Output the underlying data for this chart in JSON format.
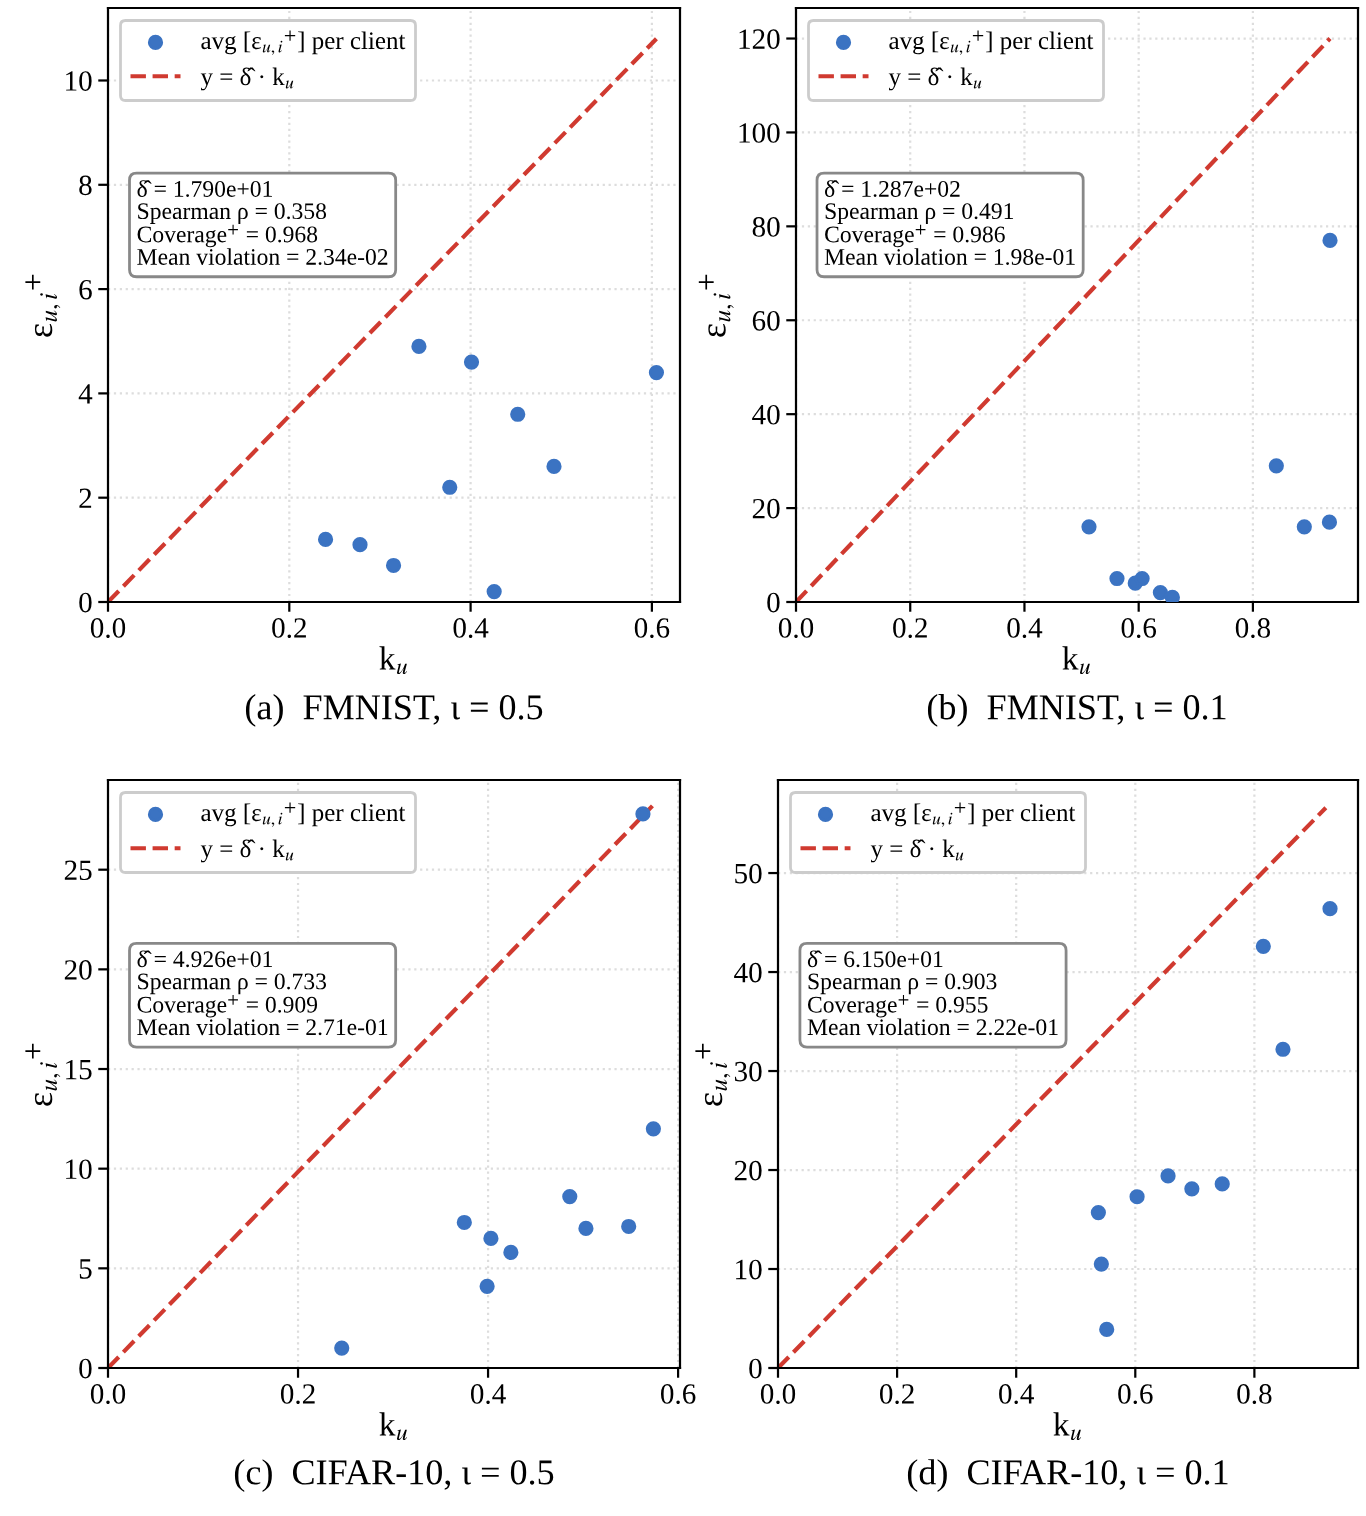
{
  "chart_data": [
    {
      "type": "scatter",
      "title": "(a)  FMNIST, ι = 0.5",
      "xlabel": "k$_{u}$",
      "ylabel": "ε$_{u,i}$$^{+}$",
      "xlim": [
        0,
        0.631
      ],
      "ylim": [
        0,
        11.39
      ],
      "xticks": [
        {
          "value": 0,
          "label": "0.0"
        },
        {
          "value": 0.2,
          "label": "0.2"
        },
        {
          "value": 0.4,
          "label": "0.4"
        },
        {
          "value": 0.6,
          "label": "0.6"
        }
      ],
      "yticks": [
        0,
        2,
        4,
        6,
        8,
        10
      ],
      "grid": true,
      "legend": "top left",
      "series": [
        {
          "name": "avg [ε$_{u,i}$$^{+}$] per client",
          "marker": "circle",
          "color": "#3b73c2",
          "x": [
            0.24,
            0.278,
            0.315,
            0.343,
            0.377,
            0.401,
            0.426,
            0.452,
            0.492,
            0.605
          ],
          "values": [
            1.2,
            1.1,
            0.7,
            4.9,
            2.2,
            4.6,
            0.2,
            3.6,
            2.6,
            4.4
          ]
        },
        {
          "name": "y = δ̂ · k$_{u}$",
          "type": "line",
          "line_style": "dashed",
          "color": "#d03a30",
          "x": [
            0,
            0.605
          ],
          "values": [
            0,
            10.8
          ]
        }
      ],
      "annotations": [
        "δ̂ = 1.790e+01\nSpearman ρ = 0.358\nCoverage$^{+}$ = 0.968\nMean violation = 2.34e-02"
      ]
    },
    {
      "type": "scatter",
      "title": "(b)  FMNIST, ι = 0.1",
      "xlabel": "k$_{u}$",
      "ylabel": "ε$_{u,i}$$^{+}$",
      "xlim": [
        0,
        0.984
      ],
      "ylim": [
        0,
        126.5
      ],
      "xticks": [
        {
          "value": 0,
          "label": "0.0"
        },
        {
          "value": 0.2,
          "label": "0.2"
        },
        {
          "value": 0.4,
          "label": "0.4"
        },
        {
          "value": 0.6,
          "label": "0.6"
        },
        {
          "value": 0.8,
          "label": "0.8"
        }
      ],
      "yticks": [
        0,
        20,
        40,
        60,
        80,
        100,
        120
      ],
      "grid": true,
      "legend": "top left",
      "series": [
        {
          "name": "avg [ε$_{u,i}$$^{+}$] per client",
          "marker": "circle",
          "color": "#3b73c2",
          "x": [
            0.513,
            0.562,
            0.594,
            0.606,
            0.638,
            0.659,
            0.841,
            0.89,
            0.934,
            0.935
          ],
          "values": [
            16,
            5,
            4,
            5,
            2,
            1,
            29,
            16,
            17,
            77
          ]
        },
        {
          "name": "y = δ̂ · k$_{u}$",
          "type": "line",
          "line_style": "dashed",
          "color": "#d03a30",
          "x": [
            0,
            0.935
          ],
          "values": [
            0,
            120
          ]
        }
      ],
      "annotations": [
        "δ̂ = 1.287e+02\nSpearman ρ = 0.491\nCoverage$^{+}$ = 0.986\nMean violation = 1.98e-01"
      ]
    },
    {
      "type": "scatter",
      "title": "(c)  CIFAR-10, ι = 0.5",
      "xlabel": "k$_{u}$",
      "ylabel": "ε$_{u,i}$$^{+}$",
      "xlim": [
        0,
        0.602
      ],
      "ylim": [
        0,
        29.5
      ],
      "xticks": [
        {
          "value": 0,
          "label": "0.0"
        },
        {
          "value": 0.2,
          "label": "0.2"
        },
        {
          "value": 0.4,
          "label": "0.4"
        },
        {
          "value": 0.6,
          "label": "0.6"
        }
      ],
      "yticks": [
        0,
        5,
        10,
        15,
        20,
        25
      ],
      "grid": true,
      "legend": "top left",
      "series": [
        {
          "name": "avg [ε$_{u,i}$$^{+}$] per client",
          "marker": "circle",
          "color": "#3b73c2",
          "x": [
            0.246,
            0.375,
            0.399,
            0.403,
            0.424,
            0.486,
            0.503,
            0.548,
            0.563,
            0.574
          ],
          "values": [
            1.0,
            7.3,
            4.1,
            6.5,
            5.8,
            8.6,
            7.0,
            7.1,
            27.8,
            12.0
          ]
        },
        {
          "name": "y = δ̂ · k$_{u}$",
          "type": "line",
          "line_style": "dashed",
          "color": "#d03a30",
          "x": [
            0,
            0.573
          ],
          "values": [
            0,
            28.2
          ]
        }
      ],
      "annotations": [
        "δ̂ = 4.926e+01\nSpearman ρ = 0.733\nCoverage$^{+}$ = 0.909\nMean violation = 2.71e-01"
      ]
    },
    {
      "type": "scatter",
      "title": "(d)  CIFAR-10, ι = 0.1",
      "xlabel": "k$_{u}$",
      "ylabel": "ε$_{u,i}$$^{+}$",
      "xlim": [
        0,
        0.974
      ],
      "ylim": [
        0,
        59.4
      ],
      "xticks": [
        {
          "value": 0,
          "label": "0.0"
        },
        {
          "value": 0.2,
          "label": "0.2"
        },
        {
          "value": 0.4,
          "label": "0.4"
        },
        {
          "value": 0.6,
          "label": "0.6"
        },
        {
          "value": 0.8,
          "label": "0.8"
        }
      ],
      "yticks": [
        0,
        10,
        20,
        30,
        40,
        50
      ],
      "grid": true,
      "legend": "top left",
      "series": [
        {
          "name": "avg [ε$_{u,i}$$^{+}$] per client",
          "marker": "circle",
          "color": "#3b73c2",
          "x": [
            0.538,
            0.543,
            0.552,
            0.603,
            0.655,
            0.695,
            0.746,
            0.815,
            0.848,
            0.927
          ],
          "values": [
            15.7,
            10.5,
            3.9,
            17.3,
            19.4,
            18.1,
            18.6,
            42.6,
            32.2,
            46.4
          ]
        },
        {
          "name": "y = δ̂ · k$_{u}$",
          "type": "line",
          "line_style": "dashed",
          "color": "#d03a30",
          "x": [
            0,
            0.92
          ],
          "values": [
            0,
            56.6
          ]
        }
      ],
      "annotations": [
        "δ̂ = 6.150e+01\nSpearman ρ = 0.903\nCoverage$^{+}$ = 0.955\nMean violation = 2.22e-01"
      ]
    }
  ]
}
